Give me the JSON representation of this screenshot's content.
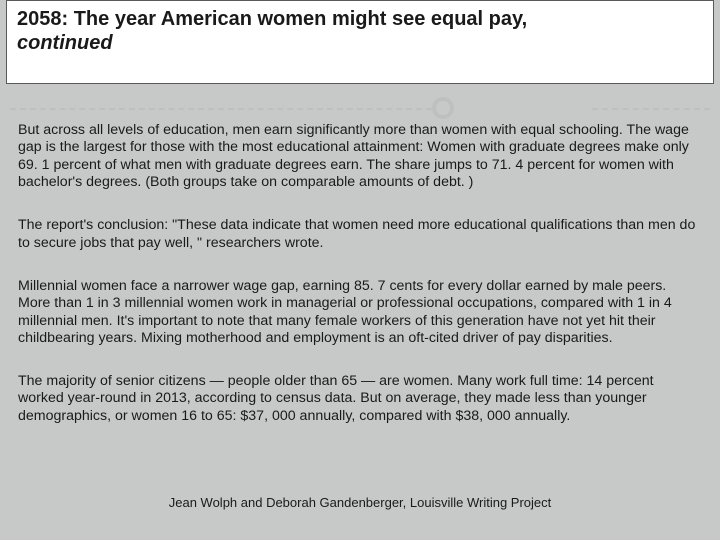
{
  "colors": {
    "slide_bg": "#c7c9c8",
    "title_box_bg": "#ffffff",
    "title_box_border": "#5a5a5a",
    "divider": "#bfbfbf",
    "text": "#1a1a1a"
  },
  "typography": {
    "title_fontsize": 20,
    "title_weight": "bold",
    "body_fontsize": 14.2,
    "footer_fontsize": 13,
    "font_family": "Arial"
  },
  "title": {
    "line1": "2058: The year American women might see equal pay,",
    "line2": "continued"
  },
  "paragraphs": [
    "But across all levels of education, men earn significantly more than women with equal schooling. The wage gap is the largest for those with the most educational attainment: Women with graduate degrees make only 69. 1 percent of what men with graduate degrees earn. The share jumps to 71. 4 percent for women with bachelor's degrees. (Both groups take on comparable amounts of debt. )",
    "The report's conclusion: \"These data indicate that women need more educational qualifications than men do to secure jobs that pay well, \" researchers wrote.",
    "Millennial women face a narrower wage gap, earning 85. 7 cents for every dollar earned by male peers. More than 1 in 3 millennial women work in managerial or professional occupations, compared with 1 in 4 millennial men. It's important to note that many female workers of this generation have not yet hit their childbearing years. Mixing motherhood and employment is an oft-cited driver of pay disparities.",
    "The majority of senior citizens — people older than 65 — are women. Many work full time: 14 percent worked year-round in 2013, according to census data. But on average, they made less than younger demographics, or women 16 to 65: $37, 000 annually, compared with $38, 000 annually."
  ],
  "footer": "Jean Wolph and Deborah Gandenberger, Louisville Writing Project"
}
